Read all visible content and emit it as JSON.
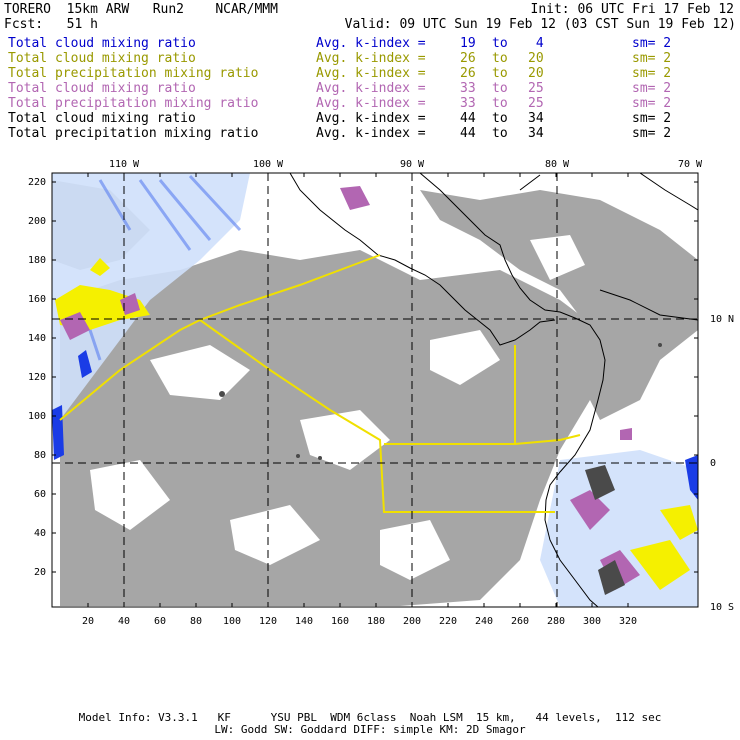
{
  "header": {
    "title": "TORERO  15km ARW   Run2    NCAR/MMM",
    "init": "Init: 06 UTC Fri 17 Feb 12",
    "fcst": "Fcst:   51 h",
    "valid": "Valid: 09 UTC Sun 19 Feb 12 (03 CST Sun 19 Feb 12)"
  },
  "legend": [
    {
      "field": "Total cloud mixing ratio",
      "index": "Avg. k-index = ",
      "from": "19",
      "to_word": "to",
      "to": " 4",
      "sm": "sm= 2",
      "color": "#0000cc",
      "sm_color": "#0000cc"
    },
    {
      "field": "Total cloud mixing ratio",
      "index": "Avg. k-index = ",
      "from": "26",
      "to_word": "to",
      "to": "20",
      "sm": "sm= 2",
      "color": "#999900",
      "sm_color": "#999900"
    },
    {
      "field": "Total precipitation mixing ratio",
      "index": "Avg. k-index = ",
      "from": "26",
      "to_word": "to",
      "to": "20",
      "sm": "sm= 2",
      "color": "#999900",
      "sm_color": "#999900"
    },
    {
      "field": "Total cloud mixing ratio",
      "index": "Avg. k-index = ",
      "from": "33",
      "to_word": "to",
      "to": "25",
      "sm": "sm= 2",
      "color": "#b266b2",
      "sm_color": "#b266b2"
    },
    {
      "field": "Total precipitation mixing ratio",
      "index": "Avg. k-index = ",
      "from": "33",
      "to_word": "to",
      "to": "25",
      "sm": "sm= 2",
      "color": "#b266b2",
      "sm_color": "#b266b2"
    },
    {
      "field": "Total cloud mixing ratio",
      "index": "Avg. k-index = ",
      "from": "44",
      "to_word": "to",
      "to": "34",
      "sm": "sm= 2",
      "color": "#000000",
      "sm_color": "#000000"
    },
    {
      "field": "Total precipitation mixing ratio",
      "index": "Avg. k-index = ",
      "from": "44",
      "to_word": "to",
      "to": "34",
      "sm": "sm= 2",
      "color": "#000000",
      "sm_color": "#000000"
    }
  ],
  "map": {
    "x_ticks": [
      "20",
      "40",
      "60",
      "80",
      "100",
      "120",
      "140",
      "160",
      "180",
      "200",
      "220",
      "240",
      "260",
      "280",
      "300",
      "320"
    ],
    "y_ticks": [
      "220",
      "200",
      "180",
      "160",
      "140",
      "120",
      "100",
      "80",
      "60",
      "40",
      "20"
    ],
    "lon_labels": [
      "110 W",
      "100 W",
      "90 W",
      "80 W",
      "70 W"
    ],
    "lat_labels": [
      "10 N",
      "0",
      "10 S"
    ]
  },
  "footer": {
    "line1": "Model Info: V3.3.1   KF      YSU PBL  WDM 6class  Noah LSM  15 km,   44 levels,  112 sec",
    "line2": "LW: Godd SW: Goddard DIFF: simple KM: 2D Smagor"
  }
}
